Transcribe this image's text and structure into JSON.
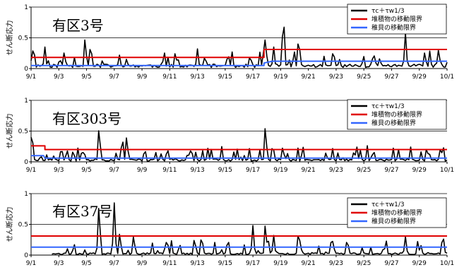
{
  "colors": {
    "tau": "#000000",
    "sediment": "#e00000",
    "juvenile": "#3366ff",
    "grid": "#000000"
  },
  "chart_data": [
    {
      "type": "line",
      "title": "有区3号",
      "ylabel": "せん断応力",
      "ylim": [
        0,
        1
      ],
      "yticks": [
        "0",
        "0.5",
        "1"
      ],
      "xticks": [
        "9/1",
        "9/3",
        "9/5",
        "9/7",
        "9/9",
        "9/11",
        "9/13",
        "9/15",
        "9/17",
        "9/19",
        "9/21",
        "9/23",
        "9/25",
        "9/27",
        "9/29",
        "10/1"
      ],
      "xlim_days": [
        0,
        30
      ],
      "grid": "horizontal",
      "legend_position": "top-right",
      "series": [
        {
          "name": "τc＋τw1/3",
          "kind": "spiky",
          "baseline": 0.06,
          "seed": 11,
          "peaks": [
            [
              0.1,
              0.34
            ],
            [
              1.0,
              0.35
            ],
            [
              2.4,
              0.3
            ],
            [
              3.9,
              0.55
            ],
            [
              4.3,
              0.45
            ],
            [
              9.6,
              0.3
            ],
            [
              12.0,
              0.32
            ],
            [
              14.2,
              0.28
            ],
            [
              15.8,
              0.25
            ],
            [
              16.9,
              0.55
            ],
            [
              17.5,
              0.35
            ],
            [
              18.2,
              0.98
            ],
            [
              19.3,
              0.58
            ],
            [
              21.8,
              0.35
            ],
            [
              24.7,
              0.3
            ],
            [
              27.0,
              0.58
            ],
            [
              28.4,
              0.3
            ],
            [
              29.4,
              0.35
            ]
          ]
        },
        {
          "name": "堆積物の移動限界",
          "kind": "step",
          "points": [
            [
              0,
              0.18
            ],
            [
              16.8,
              0.18
            ],
            [
              16.8,
              0.31
            ],
            [
              30,
              0.31
            ]
          ]
        },
        {
          "name": "稚貝の移動限界",
          "kind": "step",
          "points": [
            [
              0,
              0.05
            ],
            [
              16.8,
              0.05
            ],
            [
              16.8,
              0.09
            ],
            [
              17.4,
              0.12
            ],
            [
              30,
              0.12
            ]
          ]
        }
      ]
    },
    {
      "type": "line",
      "title": "有区303号",
      "ylabel": "せん断応力",
      "ylim": [
        0,
        1
      ],
      "yticks": [
        "0",
        "0.5",
        "1"
      ],
      "xticks": [
        "9/1",
        "9/3",
        "9/5",
        "9/7",
        "9/9",
        "9/11",
        "9/13",
        "9/15",
        "9/17",
        "9/19",
        "9/21",
        "9/23",
        "9/25",
        "9/27",
        "9/29",
        "10/1"
      ],
      "xlim_days": [
        0,
        30
      ],
      "grid": "horizontal",
      "legend_position": "top-right",
      "series": [
        {
          "name": "τc＋τw1/3",
          "kind": "spiky",
          "baseline": 0.04,
          "seed": 23,
          "peaks": [
            [
              0.05,
              0.58
            ],
            [
              0.7,
              0.12
            ],
            [
              3.8,
              0.22
            ],
            [
              4.9,
              0.6
            ],
            [
              6.6,
              0.38
            ],
            [
              6.9,
              0.46
            ],
            [
              8.2,
              0.24
            ],
            [
              9.8,
              0.18
            ],
            [
              11.6,
              0.16
            ],
            [
              13.0,
              0.2
            ],
            [
              16.9,
              0.64
            ],
            [
              19.6,
              0.28
            ],
            [
              23.5,
              0.24
            ],
            [
              24.7,
              0.22
            ],
            [
              26.5,
              0.2
            ],
            [
              28.6,
              0.16
            ],
            [
              29.7,
              0.28
            ]
          ]
        },
        {
          "name": "堆積物の移動限界",
          "kind": "step",
          "points": [
            [
              0,
              0.26
            ],
            [
              1.0,
              0.26
            ],
            [
              1.0,
              0.2
            ],
            [
              30,
              0.2
            ]
          ]
        },
        {
          "name": "稚貝の移動限界",
          "kind": "step",
          "points": [
            [
              0,
              0.1
            ],
            [
              0.9,
              0.1
            ],
            [
              1.0,
              0.06
            ],
            [
              30,
              0.06
            ]
          ]
        }
      ]
    },
    {
      "type": "line",
      "title": "有区37号",
      "ylabel": "せん断応力",
      "ylim": [
        0,
        1
      ],
      "yticks": [
        "0",
        "0.5",
        "1"
      ],
      "xticks": [
        "9/1",
        "9/3",
        "9/5",
        "9/7",
        "9/9",
        "9/11",
        "9/13",
        "9/15",
        "9/17",
        "9/19",
        "9/21",
        "9/23",
        "9/25",
        "9/27",
        "9/29",
        "10/1"
      ],
      "xlim_days": [
        0,
        30
      ],
      "grid": "horizontal",
      "legend_position": "top-right",
      "series": [
        {
          "name": "τc＋τw1/3",
          "kind": "spiky",
          "baseline": 0.03,
          "start": 1.5,
          "seed": 37,
          "peaks": [
            [
              3.1,
              0.2
            ],
            [
              4.9,
              0.9
            ],
            [
              6.0,
              0.85
            ],
            [
              6.4,
              0.4
            ],
            [
              7.4,
              0.35
            ],
            [
              9.8,
              0.3
            ],
            [
              11.8,
              0.28
            ],
            [
              12.3,
              0.36
            ],
            [
              14.2,
              0.3
            ],
            [
              16.0,
              0.48
            ],
            [
              16.9,
              0.56
            ],
            [
              17.5,
              0.32
            ],
            [
              19.3,
              0.45
            ],
            [
              21.7,
              0.32
            ],
            [
              22.8,
              0.3
            ],
            [
              25.6,
              0.27
            ],
            [
              27.0,
              0.3
            ],
            [
              29.7,
              0.38
            ]
          ]
        },
        {
          "name": "堆積物の移動限界",
          "kind": "step",
          "points": [
            [
              0,
              0.31
            ],
            [
              30,
              0.31
            ]
          ]
        },
        {
          "name": "稚貝の移動限界",
          "kind": "step",
          "points": [
            [
              0,
              0.13
            ],
            [
              30,
              0.13
            ]
          ]
        }
      ]
    }
  ]
}
